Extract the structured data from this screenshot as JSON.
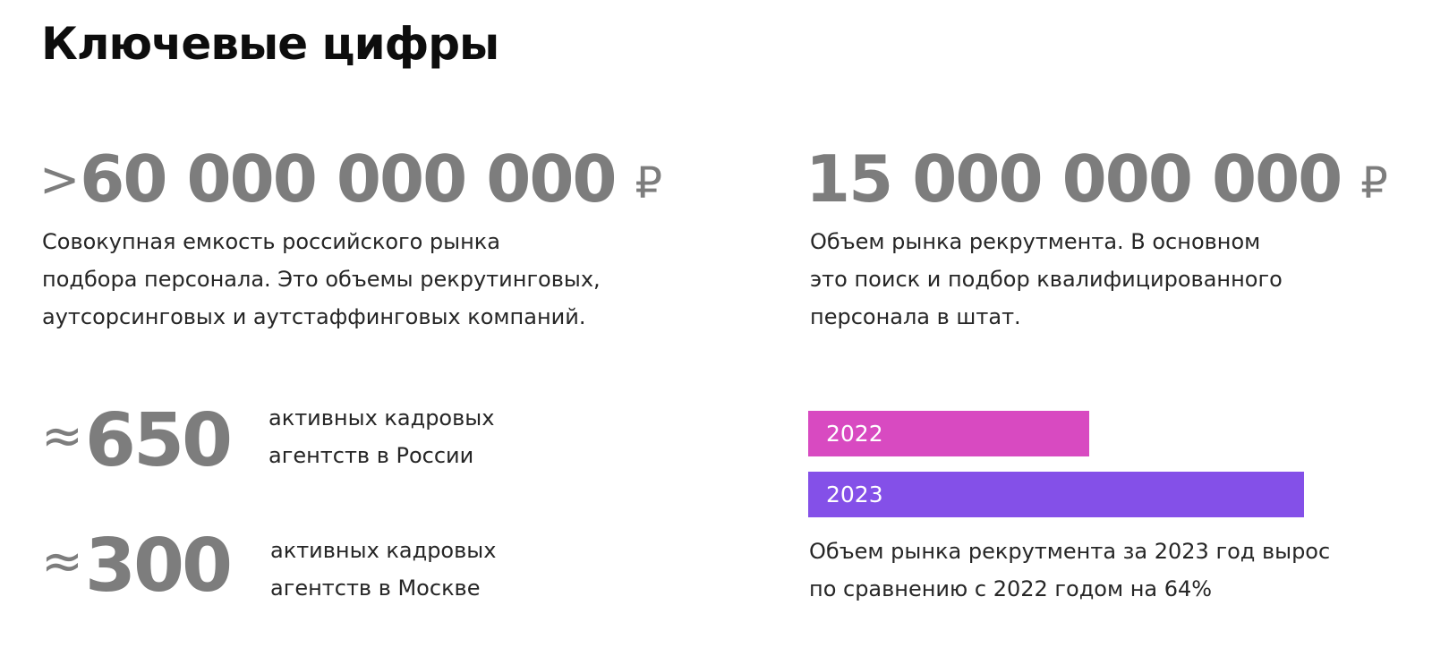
{
  "title": "Ключевые цифры",
  "stats": {
    "market_total": {
      "prefix": ">",
      "value": "60 000 000 000",
      "currency": "₽",
      "description_lines": [
        "Совокупная емкость российского рынка",
        "подбора персонала. Это объемы рекрутинговых,",
        "аутсорсинговых и аутстаффинговых компаний."
      ]
    },
    "recruitment_market": {
      "value": "15 000 000 000",
      "currency": "₽",
      "description_lines": [
        "Объем рынка рекрутмента. В основном",
        "это поиск и подбор квалифицированного",
        "персонала в штат."
      ]
    },
    "agencies_russia": {
      "symbol": "≈",
      "value": "650",
      "label_lines": [
        "активных кадровых",
        "агентств в России"
      ]
    },
    "agencies_moscow": {
      "symbol": "≈",
      "value": "300",
      "label_lines": [
        "активных кадровых",
        "агентств в Москве"
      ]
    }
  },
  "growth_bars": [
    {
      "label": "2022",
      "color": "#d84ac1"
    },
    {
      "label": "2023",
      "color": "#8450e8"
    }
  ],
  "growth_text_lines": [
    "Объем рынка рекрутмента за 2023 год вырос",
    "по сравнению с 2022 годом на 64%"
  ]
}
